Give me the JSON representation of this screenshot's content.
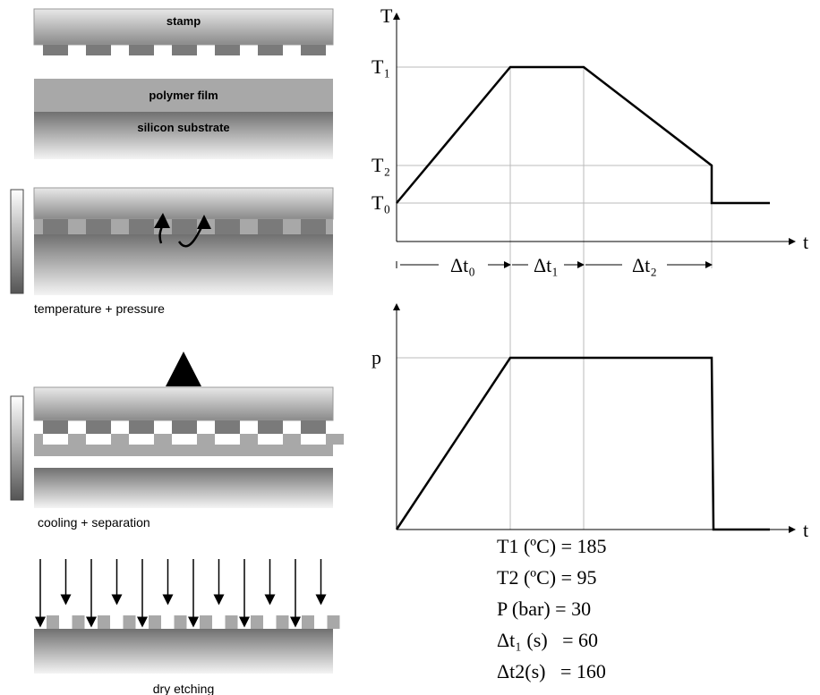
{
  "process": {
    "stamp": "stamp",
    "polymer_film": "polymer film",
    "substrate": "silicon substrate",
    "step2": "temperature + pressure",
    "step3": "cooling + separation",
    "step4": "dry etching"
  },
  "temperature_graph": {
    "y_label": "T",
    "x_label": "t",
    "levels": [
      "T₁",
      "T₂",
      "T₀"
    ],
    "intervals": [
      "Δt₀",
      "Δt₁",
      "Δt₂"
    ]
  },
  "pressure_graph": {
    "y_label": "p",
    "x_label": "t"
  },
  "parameters": [
    "T1 (ºC) = 185",
    "T2 (ºC) = 95",
    "P (bar) = 30",
    "Δt₁ (s)   = 60",
    "Δt2(s)   = 160"
  ]
}
